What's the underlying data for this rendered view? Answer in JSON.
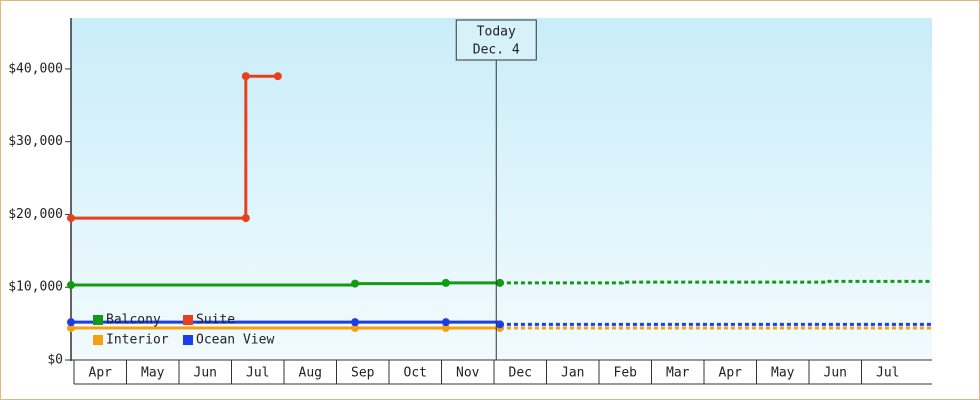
{
  "chart_data": {
    "type": "step-line",
    "categories": [
      "Apr",
      "May",
      "Jun",
      "Jul",
      "Aug",
      "Sep",
      "Oct",
      "Nov",
      "Dec",
      "Jan",
      "Feb",
      "Mar",
      "Apr",
      "May",
      "Jun",
      "Jul"
    ],
    "xlim": [
      0,
      16.4
    ],
    "ylim": [
      0,
      47000
    ],
    "yticks": [
      {
        "value": 0,
        "label": "$0"
      },
      {
        "value": 10000,
        "label": "$10,000"
      },
      {
        "value": 20000,
        "label": "$20,000"
      },
      {
        "value": 30000,
        "label": "$30,000"
      },
      {
        "value": 40000,
        "label": "$40,000"
      }
    ],
    "legend": "lower left",
    "today": {
      "x": 8.1,
      "label": "Today",
      "date": "Dec. 4"
    },
    "series": [
      {
        "name": "Balcony",
        "color": "#129a12",
        "x": [
          0,
          5.41,
          7.14,
          8.17
        ],
        "values": [
          10300,
          10500,
          10600,
          10600
        ],
        "forecast": {
          "x": [
            8.17,
            10.5,
            14.4,
            16.4
          ],
          "values": [
            10600,
            10700,
            10800,
            10800
          ]
        }
      },
      {
        "name": "Suite",
        "color": "#e8401c",
        "x": [
          0,
          3.33,
          3.33,
          3.94
        ],
        "values": [
          19500,
          19500,
          39000,
          39000
        ]
      },
      {
        "name": "Interior",
        "color": "#f5a010",
        "x": [
          0,
          5.41,
          7.14,
          8.17
        ],
        "values": [
          4400,
          4400,
          4400,
          4400
        ],
        "forecast": {
          "x": [
            8.17,
            16.4
          ],
          "values": [
            4400,
            4400
          ]
        }
      },
      {
        "name": "Ocean View",
        "color": "#1c3ee8",
        "x": [
          0,
          5.41,
          7.14,
          8.17
        ],
        "values": [
          5200,
          5200,
          5200,
          4900
        ],
        "forecast": {
          "x": [
            8.17,
            16.4
          ],
          "values": [
            4900,
            4800
          ]
        }
      }
    ]
  }
}
